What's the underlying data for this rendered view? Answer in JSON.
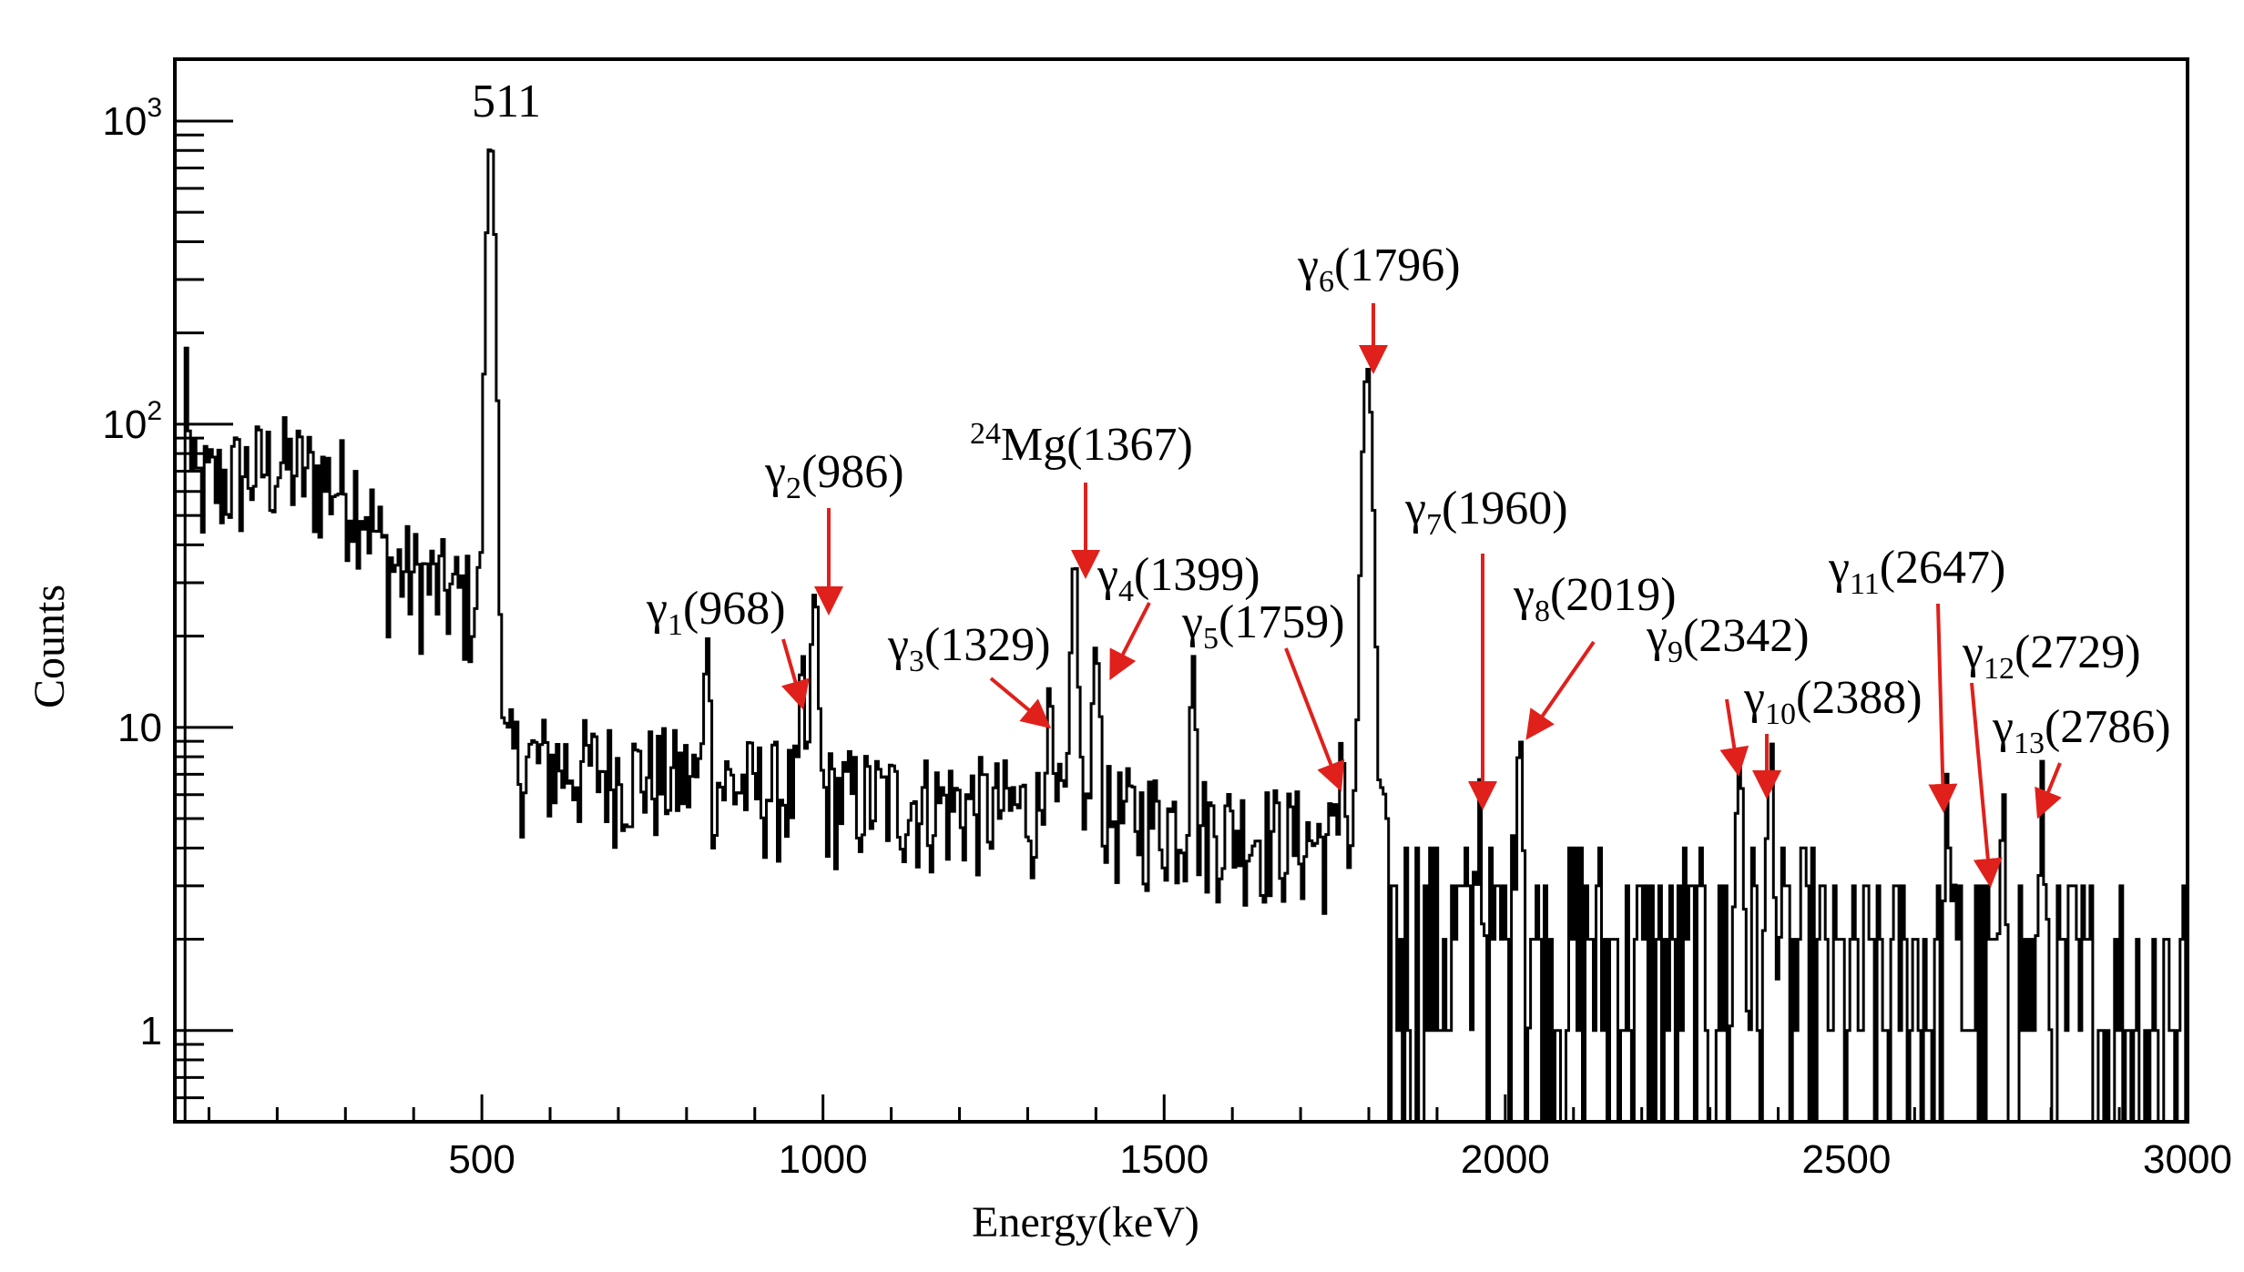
{
  "chart_data": {
    "type": "line",
    "step": true,
    "xlabel": "Energy(keV)",
    "ylabel": "Counts",
    "xlim": [
      50,
      3000
    ],
    "ylim": [
      0.5,
      1600
    ],
    "yscale": "log",
    "grid": false,
    "x_ticks": [
      500,
      1000,
      1500,
      2000,
      2500,
      3000
    ],
    "x_tick_labels": [
      "500",
      "1000",
      "1500",
      "2000",
      "2500",
      "3000"
    ],
    "y_tick_labels": [
      {
        "base": "1",
        "exp": ""
      },
      {
        "base": "10",
        "exp": ""
      },
      {
        "base": "10",
        "exp": "2"
      },
      {
        "base": "10",
        "exp": "3"
      }
    ],
    "y_tick_values": [
      1,
      10,
      100,
      1000
    ],
    "peak_label_511": "511",
    "annotations": [
      {
        "symbol": "γ",
        "sub": "1",
        "text": "(968)",
        "energy": 968,
        "counts": 8
      },
      {
        "symbol": "γ",
        "sub": "2",
        "text": "(986)",
        "energy": 986,
        "counts": 23
      },
      {
        "symbol": "γ",
        "sub": "3",
        "text": "(1329)",
        "energy": 1329,
        "counts": 9
      },
      {
        "symbol": "",
        "sup": "24",
        "text": "Mg(1367)",
        "energy": 1367,
        "counts": 31
      },
      {
        "symbol": "γ",
        "sub": "4",
        "text": "(1399)",
        "energy": 1399,
        "counts": 15
      },
      {
        "symbol": "γ",
        "sub": "5",
        "text": "(1759)",
        "energy": 1759,
        "counts": 6
      },
      {
        "symbol": "γ",
        "sub": "6",
        "text": "(1796)",
        "energy": 1796,
        "counts": 150
      },
      {
        "symbol": "γ",
        "sub": "7",
        "text": "(1960)",
        "energy": 1960,
        "counts": 5
      },
      {
        "symbol": "γ",
        "sub": "8",
        "text": "(2019)",
        "energy": 2019,
        "counts": 9
      },
      {
        "symbol": "γ",
        "sub": "9",
        "text": "(2342)",
        "energy": 2342,
        "counts": 7
      },
      {
        "symbol": "γ",
        "sub": "10",
        "text": "(2388)",
        "energy": 2388,
        "counts": 6
      },
      {
        "symbol": "γ",
        "sub": "11",
        "text": "(2647)",
        "energy": 2647,
        "counts": 5
      },
      {
        "symbol": "γ",
        "sub": "12",
        "text": "(2729)",
        "energy": 2729,
        "counts": 3
      },
      {
        "symbol": "γ",
        "sub": "13",
        "text": "(2786)",
        "energy": 2786,
        "counts": 5
      }
    ],
    "series": [
      {
        "line_color": "#000000",
        "arrow_color": "#e0201b",
        "peaks": [
          {
            "energy": 65,
            "counts": 110,
            "width": 3
          },
          {
            "energy": 511,
            "counts": 850,
            "width": 5
          },
          {
            "energy": 828,
            "counts": 16,
            "width": 3
          },
          {
            "energy": 968,
            "counts": 10,
            "width": 3
          },
          {
            "energy": 986,
            "counts": 23,
            "width": 4
          },
          {
            "energy": 1329,
            "counts": 10,
            "width": 3
          },
          {
            "energy": 1367,
            "counts": 31,
            "width": 4
          },
          {
            "energy": 1399,
            "counts": 15,
            "width": 4
          },
          {
            "energy": 1540,
            "counts": 14,
            "width": 3
          },
          {
            "energy": 1759,
            "counts": 6,
            "width": 3
          },
          {
            "energy": 1796,
            "counts": 150,
            "width": 6
          },
          {
            "energy": 1960,
            "counts": 5,
            "width": 3
          },
          {
            "energy": 2019,
            "counts": 9,
            "width": 4
          },
          {
            "energy": 2342,
            "counts": 7,
            "width": 4
          },
          {
            "energy": 2388,
            "counts": 6,
            "width": 4
          },
          {
            "energy": 2647,
            "counts": 5,
            "width": 3
          },
          {
            "energy": 2729,
            "counts": 3,
            "width": 3
          },
          {
            "energy": 2786,
            "counts": 5,
            "width": 3
          }
        ],
        "continuum": [
          {
            "energy": 65,
            "counts": 60
          },
          {
            "energy": 200,
            "counts": 75
          },
          {
            "energy": 320,
            "counts": 60
          },
          {
            "energy": 360,
            "counts": 35
          },
          {
            "energy": 500,
            "counts": 25
          },
          {
            "energy": 520,
            "counts": 8
          },
          {
            "energy": 1000,
            "counts": 6
          },
          {
            "energy": 1500,
            "counts": 5
          },
          {
            "energy": 1800,
            "counts": 4
          },
          {
            "energy": 1830,
            "counts": 1.8
          },
          {
            "energy": 3000,
            "counts": 1.2
          }
        ]
      }
    ]
  }
}
